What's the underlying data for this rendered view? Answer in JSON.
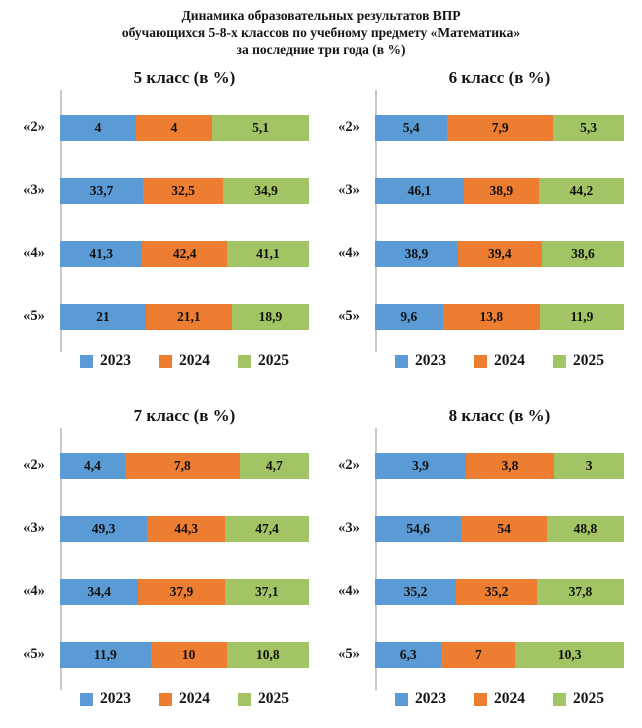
{
  "header": {
    "lines": [
      "Динамика образовательных результатов ВПР",
      "обучающихся 5-8-х классов по учебному предмету «Математика»",
      "за последние три года (в %)"
    ]
  },
  "colors": {
    "year_2023": "#5B9BD5",
    "year_2024": "#ED7D31",
    "year_2025": "#A3C464",
    "axis_line": "#C9C9C9",
    "text": "#1A1A1A"
  },
  "chart_data": [
    {
      "type": "bar",
      "subtype": "horizontal-stacked-normalized",
      "title": "5 класс (в %)",
      "categories": [
        "«2»",
        "«3»",
        "«4»",
        "«5»"
      ],
      "legend_position": "bottom",
      "grid": false,
      "series": [
        {
          "name": "2023",
          "color": "#5B9BD5",
          "values": [
            4,
            33.7,
            41.3,
            21
          ],
          "labels": [
            "4",
            "33,7",
            "41,3",
            "21"
          ]
        },
        {
          "name": "2024",
          "color": "#ED7D31",
          "values": [
            4,
            32.5,
            42.4,
            21.1
          ],
          "labels": [
            "4",
            "32,5",
            "42,4",
            "21,1"
          ]
        },
        {
          "name": "2025",
          "color": "#A3C464",
          "values": [
            5.1,
            34.9,
            41.1,
            18.9
          ],
          "labels": [
            "5,1",
            "34,9",
            "41,1",
            "18,9"
          ]
        }
      ]
    },
    {
      "type": "bar",
      "subtype": "horizontal-stacked-normalized",
      "title": "6 класс (в %)",
      "categories": [
        "«2»",
        "«3»",
        "«4»",
        "«5»"
      ],
      "legend_position": "bottom",
      "grid": false,
      "series": [
        {
          "name": "2023",
          "color": "#5B9BD5",
          "values": [
            5.4,
            46.1,
            38.9,
            9.6
          ],
          "labels": [
            "5,4",
            "46,1",
            "38,9",
            "9,6"
          ]
        },
        {
          "name": "2024",
          "color": "#ED7D31",
          "values": [
            7.9,
            38.9,
            39.4,
            13.8
          ],
          "labels": [
            "7,9",
            "38,9",
            "39,4",
            "13,8"
          ]
        },
        {
          "name": "2025",
          "color": "#A3C464",
          "values": [
            5.3,
            44.2,
            38.6,
            11.9
          ],
          "labels": [
            "5,3",
            "44,2",
            "38,6",
            "11,9"
          ]
        }
      ]
    },
    {
      "type": "bar",
      "subtype": "horizontal-stacked-normalized",
      "title": "7 класс (в %)",
      "categories": [
        "«2»",
        "«3»",
        "«4»",
        "«5»"
      ],
      "legend_position": "bottom",
      "grid": false,
      "series": [
        {
          "name": "2023",
          "color": "#5B9BD5",
          "values": [
            4.4,
            49.3,
            34.4,
            11.9
          ],
          "labels": [
            "4,4",
            "49,3",
            "34,4",
            "11,9"
          ]
        },
        {
          "name": "2024",
          "color": "#ED7D31",
          "values": [
            7.8,
            44.3,
            37.9,
            10
          ],
          "labels": [
            "7,8",
            "44,3",
            "37,9",
            "10"
          ]
        },
        {
          "name": "2025",
          "color": "#A3C464",
          "values": [
            4.7,
            47.4,
            37.1,
            10.8
          ],
          "labels": [
            "4,7",
            "47,4",
            "37,1",
            "10,8"
          ]
        }
      ]
    },
    {
      "type": "bar",
      "subtype": "horizontal-stacked-normalized",
      "title": "8 класс (в %)",
      "categories": [
        "«2»",
        "«3»",
        "«4»",
        "«5»"
      ],
      "legend_position": "bottom",
      "grid": false,
      "series": [
        {
          "name": "2023",
          "color": "#5B9BD5",
          "values": [
            3.9,
            54.6,
            35.2,
            6.3
          ],
          "labels": [
            "3,9",
            "54,6",
            "35,2",
            "6,3"
          ]
        },
        {
          "name": "2024",
          "color": "#ED7D31",
          "values": [
            3.8,
            54,
            35.2,
            7
          ],
          "labels": [
            "3,8",
            "54",
            "35,2",
            "7"
          ]
        },
        {
          "name": "2025",
          "color": "#A3C464",
          "values": [
            3,
            48.8,
            37.8,
            10.3
          ],
          "labels": [
            "3",
            "48,8",
            "37,8",
            "10,3"
          ]
        }
      ]
    }
  ]
}
